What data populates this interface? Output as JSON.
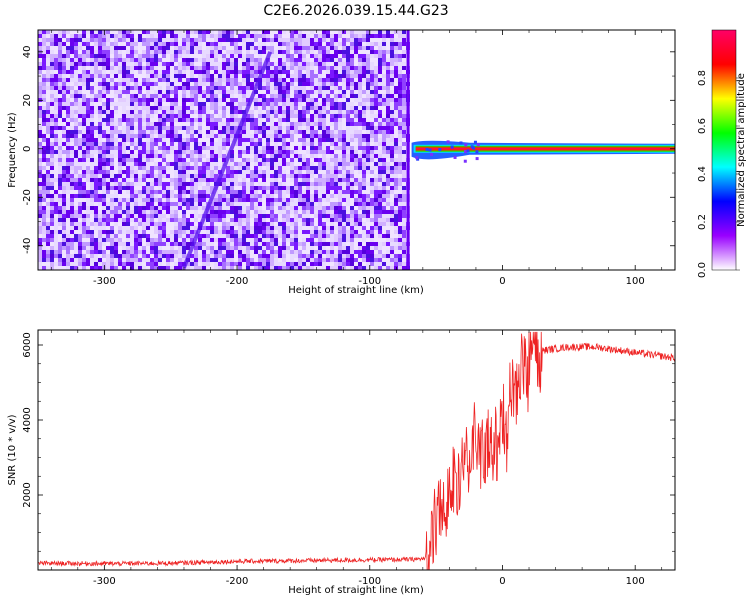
{
  "chart_data": [
    {
      "type": "heatmap",
      "title": "C2E6.2026.039.15.44.G23",
      "xlabel": "Height of straight line (km)",
      "ylabel": "Frequency (Hz)",
      "xlim": [
        -350,
        130
      ],
      "ylim": [
        -50,
        49
      ],
      "xticks": [
        -300,
        -200,
        -100,
        0,
        100
      ],
      "yticks": [
        -40,
        -20,
        0,
        20,
        40
      ],
      "colorbar": {
        "label": "Normalized spectral amplitude",
        "range": [
          0,
          1
        ],
        "ticks": [
          "0.0",
          "0.2",
          "0.4",
          "0.6",
          "0.8"
        ],
        "tick_values": [
          0.0,
          0.2,
          0.4,
          0.6,
          0.8
        ],
        "colormap": [
          "#ffffff",
          "#9900ff",
          "#0000ff",
          "#00ffff",
          "#00ff00",
          "#ffff00",
          "#ff0000",
          "#ff0066"
        ]
      },
      "regions": [
        {
          "name": "noise",
          "x_range": [
            -350,
            -70
          ],
          "freq_range": [
            -50,
            49
          ],
          "amplitude": 0.05
        },
        {
          "name": "carrier",
          "x_range": [
            -70,
            130
          ],
          "frequency": 0,
          "amplitude": 0.95
        }
      ],
      "streak": {
        "from": [
          -240,
          -49
        ],
        "to": [
          -175,
          40
        ]
      }
    },
    {
      "type": "line",
      "title": "",
      "xlabel": "Height of straight line (km)",
      "ylabel": "SNR (10 * v/v)",
      "xlim": [
        -350,
        130
      ],
      "ylim": [
        0,
        6400
      ],
      "xticks": [
        -300,
        -200,
        -100,
        0,
        100
      ],
      "yticks": [
        2000,
        4000,
        6000
      ],
      "series": [
        {
          "name": "SNR",
          "color": "#ee2222",
          "x": [
            -350,
            -300,
            -250,
            -200,
            -150,
            -100,
            -70,
            -58,
            -55,
            -50,
            -45,
            -40,
            -35,
            -30,
            -25,
            -20,
            -15,
            -10,
            -5,
            0,
            5,
            10,
            15,
            20,
            25,
            30,
            35,
            40,
            50,
            60,
            70,
            80,
            90,
            100,
            110,
            120,
            130
          ],
          "y": [
            180,
            170,
            180,
            230,
            250,
            270,
            280,
            300,
            700,
            1200,
            1700,
            2100,
            2500,
            2900,
            3300,
            3300,
            3200,
            3300,
            3500,
            3900,
            4500,
            4900,
            5300,
            5500,
            5750,
            5850,
            5880,
            5900,
            5950,
            5950,
            5950,
            5900,
            5850,
            5800,
            5750,
            5700,
            5650
          ]
        }
      ]
    }
  ]
}
